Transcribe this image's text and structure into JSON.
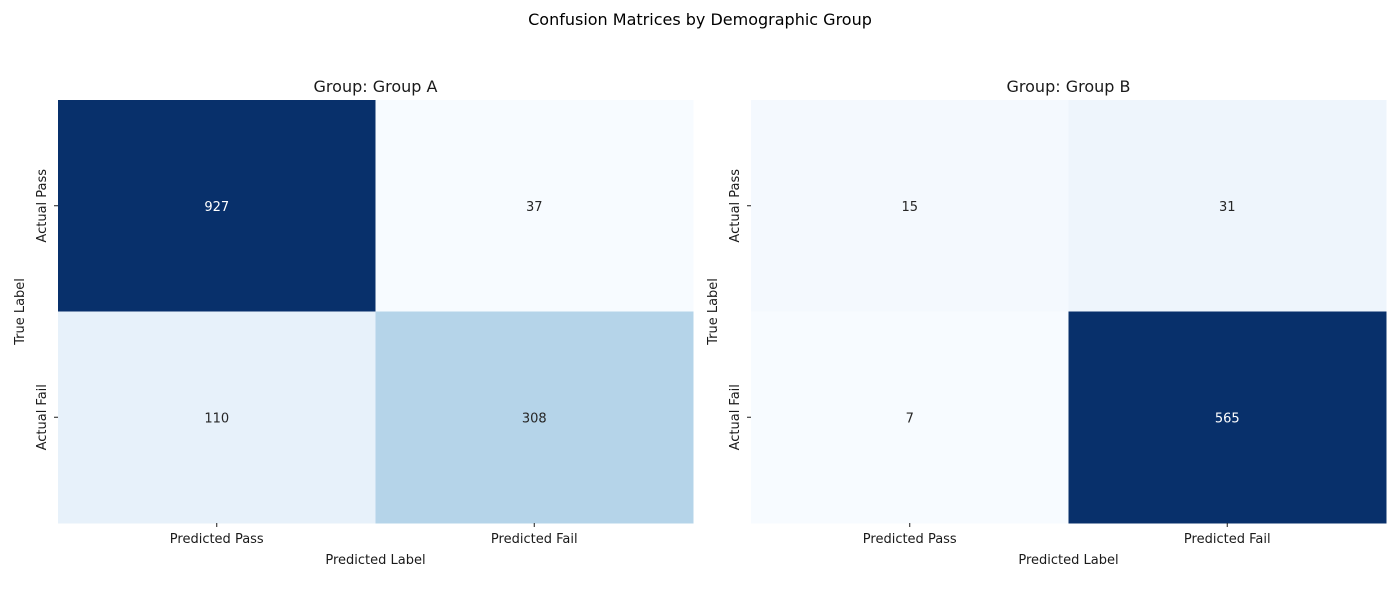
{
  "figure": {
    "title": "Confusion Matrices by Demographic Group"
  },
  "chart_data": [
    {
      "type": "heatmap",
      "title": "Group: Group A",
      "xlabel": "Predicted Label",
      "ylabel": "True Label",
      "x_categories": [
        "Predicted Pass",
        "Predicted Fail"
      ],
      "y_categories": [
        "Actual Pass",
        "Actual Fail"
      ],
      "values": [
        [
          927,
          37
        ],
        [
          110,
          308
        ]
      ],
      "colormap": "Blues",
      "colorbar": false,
      "grid": false
    },
    {
      "type": "heatmap",
      "title": "Group: Group B",
      "xlabel": "Predicted Label",
      "ylabel": "True Label",
      "x_categories": [
        "Predicted Pass",
        "Predicted Fail"
      ],
      "y_categories": [
        "Actual Pass",
        "Actual Fail"
      ],
      "values": [
        [
          15,
          31
        ],
        [
          7,
          565
        ]
      ],
      "colormap": "Blues",
      "colorbar": false,
      "grid": false
    }
  ]
}
